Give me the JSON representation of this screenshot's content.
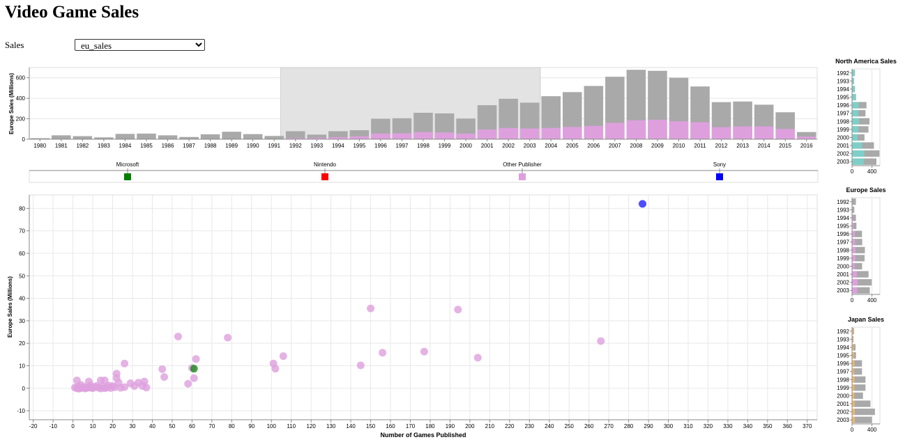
{
  "page": {
    "title": "Video Game Sales",
    "sales_label": "Sales",
    "select": {
      "value": "eu_sales",
      "options": [
        "eu_sales"
      ]
    }
  },
  "colors": {
    "total_bar": "#a9a9a9",
    "selected_bar": "#dda0dd",
    "brush": "#e3e3e3",
    "na": "#7fcfc8",
    "eu": "#dda0dd",
    "jp": "#f0b86a",
    "Microsoft": "#008000",
    "Nintendo": "#ff0000",
    "Other Publisher": "#dda0dd",
    "Sony": "#0000ff"
  },
  "chart_data": [
    {
      "id": "year-bars",
      "type": "bar",
      "ylabel": "Europe Sales (Millions)",
      "ylim": [
        0,
        700
      ],
      "yticks": [
        0,
        200,
        400,
        600
      ],
      "brush_years": [
        1992,
        2003
      ],
      "categories": [
        "1980",
        "1981",
        "1982",
        "1983",
        "1984",
        "1985",
        "1986",
        "1987",
        "1988",
        "1989",
        "1990",
        "1991",
        "1992",
        "1993",
        "1994",
        "1995",
        "1996",
        "1997",
        "1998",
        "1999",
        "2000",
        "2001",
        "2002",
        "2003",
        "2004",
        "2005",
        "2006",
        "2007",
        "2008",
        "2009",
        "2010",
        "2011",
        "2012",
        "2013",
        "2014",
        "2015",
        "2016"
      ],
      "series": [
        {
          "values": [
            10,
            38,
            30,
            18,
            52,
            55,
            38,
            22,
            48,
            73,
            50,
            32,
            78,
            45,
            78,
            88,
            200,
            205,
            258,
            252,
            202,
            332,
            395,
            357,
            420,
            460,
            520,
            610,
            678,
            668,
            600,
            515,
            362,
            368,
            337,
            263,
            70
          ]
        },
        {
          "values": [
            0,
            0,
            0,
            0,
            0,
            0,
            0,
            0,
            0,
            0,
            0,
            0,
            10,
            12,
            20,
            28,
            55,
            58,
            70,
            66,
            55,
            95,
            110,
            105,
            110,
            120,
            130,
            160,
            185,
            190,
            175,
            165,
            118,
            125,
            125,
            100,
            25
          ]
        }
      ]
    },
    {
      "id": "publisher-legend",
      "type": "legend",
      "items": [
        "Microsoft",
        "Nintendo",
        "Other Publisher",
        "Sony"
      ]
    },
    {
      "id": "publisher-scatter",
      "type": "scatter",
      "xlabel": "Number of Games Published",
      "ylabel": "Europe Sales (Millions)",
      "xlim": [
        -22,
        375
      ],
      "ylim": [
        -14,
        86
      ],
      "xticks": [
        -20,
        -10,
        0,
        10,
        20,
        30,
        40,
        50,
        60,
        70,
        80,
        90,
        100,
        110,
        120,
        130,
        140,
        150,
        160,
        170,
        180,
        190,
        200,
        210,
        220,
        230,
        240,
        250,
        260,
        270,
        280,
        290,
        300,
        310,
        320,
        330,
        340,
        350,
        360,
        370
      ],
      "yticks": [
        -10,
        0,
        10,
        20,
        30,
        40,
        50,
        60,
        70,
        80
      ],
      "points": [
        {
          "x": 287,
          "y": 82,
          "publisher": "Sony"
        },
        {
          "x": 61,
          "y": 8.7,
          "publisher": "Microsoft"
        },
        {
          "x": 150,
          "y": 35.5,
          "publisher": "Other Publisher"
        },
        {
          "x": 194,
          "y": 35,
          "publisher": "Other Publisher"
        },
        {
          "x": 53,
          "y": 23,
          "publisher": "Other Publisher"
        },
        {
          "x": 78,
          "y": 22.5,
          "publisher": "Other Publisher"
        },
        {
          "x": 266,
          "y": 21,
          "publisher": "Other Publisher"
        },
        {
          "x": 156,
          "y": 15.8,
          "publisher": "Other Publisher"
        },
        {
          "x": 177,
          "y": 16.3,
          "publisher": "Other Publisher"
        },
        {
          "x": 106,
          "y": 14.3,
          "publisher": "Other Publisher"
        },
        {
          "x": 204,
          "y": 13.6,
          "publisher": "Other Publisher"
        },
        {
          "x": 62,
          "y": 13,
          "publisher": "Other Publisher"
        },
        {
          "x": 26,
          "y": 11,
          "publisher": "Other Publisher"
        },
        {
          "x": 101,
          "y": 11,
          "publisher": "Other Publisher"
        },
        {
          "x": 145,
          "y": 10.2,
          "publisher": "Other Publisher"
        },
        {
          "x": 102,
          "y": 8.7,
          "publisher": "Other Publisher"
        },
        {
          "x": 45,
          "y": 8.5,
          "publisher": "Other Publisher"
        },
        {
          "x": 60,
          "y": 9,
          "publisher": "Other Publisher"
        },
        {
          "x": 22,
          "y": 6.5,
          "publisher": "Other Publisher"
        },
        {
          "x": 46,
          "y": 5,
          "publisher": "Other Publisher"
        },
        {
          "x": 61,
          "y": 4.5,
          "publisher": "Other Publisher"
        },
        {
          "x": 22,
          "y": 4.5,
          "publisher": "Other Publisher"
        },
        {
          "x": 2,
          "y": 3.5,
          "publisher": "Other Publisher"
        },
        {
          "x": 8,
          "y": 3,
          "publisher": "Other Publisher"
        },
        {
          "x": 14,
          "y": 3.5,
          "publisher": "Other Publisher"
        },
        {
          "x": 16,
          "y": 3.5,
          "publisher": "Other Publisher"
        },
        {
          "x": 23,
          "y": 2.5,
          "publisher": "Other Publisher"
        },
        {
          "x": 29,
          "y": 2.2,
          "publisher": "Other Publisher"
        },
        {
          "x": 33,
          "y": 2.5,
          "publisher": "Other Publisher"
        },
        {
          "x": 36,
          "y": 3,
          "publisher": "Other Publisher"
        },
        {
          "x": 58,
          "y": 2,
          "publisher": "Other Publisher"
        },
        {
          "x": 4,
          "y": 1.5,
          "publisher": "Other Publisher"
        },
        {
          "x": 9,
          "y": 1.2,
          "publisher": "Other Publisher"
        },
        {
          "x": 12,
          "y": 1,
          "publisher": "Other Publisher"
        },
        {
          "x": 18,
          "y": 1.2,
          "publisher": "Other Publisher"
        },
        {
          "x": 20,
          "y": 1,
          "publisher": "Other Publisher"
        },
        {
          "x": 26,
          "y": 0.5,
          "publisher": "Other Publisher"
        },
        {
          "x": 31,
          "y": 1,
          "publisher": "Other Publisher"
        },
        {
          "x": 37,
          "y": 0.3,
          "publisher": "Other Publisher"
        },
        {
          "x": 1,
          "y": 0.3,
          "publisher": "Other Publisher"
        },
        {
          "x": 2,
          "y": 0,
          "publisher": "Other Publisher"
        },
        {
          "x": 3,
          "y": 0.8,
          "publisher": "Other Publisher"
        },
        {
          "x": 5,
          "y": 0.2,
          "publisher": "Other Publisher"
        },
        {
          "x": 6,
          "y": 0.6,
          "publisher": "Other Publisher"
        },
        {
          "x": 7,
          "y": 0.1,
          "publisher": "Other Publisher"
        },
        {
          "x": 8,
          "y": 0.4,
          "publisher": "Other Publisher"
        },
        {
          "x": 10,
          "y": 0,
          "publisher": "Other Publisher"
        },
        {
          "x": 11,
          "y": 0.5,
          "publisher": "Other Publisher"
        },
        {
          "x": 13,
          "y": 0.2,
          "publisher": "Other Publisher"
        },
        {
          "x": 15,
          "y": 0.7,
          "publisher": "Other Publisher"
        },
        {
          "x": 16,
          "y": 0,
          "publisher": "Other Publisher"
        },
        {
          "x": 17,
          "y": 0.3,
          "publisher": "Other Publisher"
        },
        {
          "x": 19,
          "y": 0.1,
          "publisher": "Other Publisher"
        },
        {
          "x": 21,
          "y": 0.4,
          "publisher": "Other Publisher"
        },
        {
          "x": 24,
          "y": 0.2,
          "publisher": "Other Publisher"
        },
        {
          "x": 3,
          "y": -0.2,
          "publisher": "Other Publisher"
        },
        {
          "x": 4,
          "y": 0.1,
          "publisher": "Other Publisher"
        },
        {
          "x": 6,
          "y": -0.1,
          "publisher": "Other Publisher"
        },
        {
          "x": 9,
          "y": 0.2,
          "publisher": "Other Publisher"
        },
        {
          "x": 14,
          "y": -0.1,
          "publisher": "Other Publisher"
        },
        {
          "x": 35,
          "y": 1,
          "publisher": "Other Publisher"
        }
      ]
    },
    {
      "id": "na-sales",
      "type": "bar",
      "title": "North America Sales",
      "categories": [
        "1992",
        "1993",
        "1994",
        "1995",
        "1996",
        "1997",
        "1998",
        "1999",
        "2000",
        "2001",
        "2002",
        "2003"
      ],
      "xlim": [
        0,
        560
      ],
      "xticks": [
        0,
        400
      ],
      "series": [
        {
          "values": [
            60,
            40,
            60,
            80,
            290,
            270,
            350,
            330,
            250,
            440,
            550,
            490
          ]
        },
        {
          "values": [
            55,
            35,
            55,
            70,
            135,
            125,
            140,
            125,
            110,
            200,
            245,
            235
          ]
        }
      ]
    },
    {
      "id": "eu-sales",
      "type": "bar",
      "title": "Europe Sales",
      "categories": [
        "1992",
        "1993",
        "1994",
        "1995",
        "1996",
        "1997",
        "1998",
        "1999",
        "2000",
        "2001",
        "2002",
        "2003"
      ],
      "xlim": [
        0,
        560
      ],
      "xticks": [
        0,
        400
      ],
      "series": [
        {
          "values": [
            78,
            45,
            78,
            88,
            200,
            205,
            258,
            252,
            202,
            332,
            395,
            357
          ]
        },
        {
          "values": [
            10,
            12,
            20,
            28,
            55,
            58,
            70,
            66,
            55,
            95,
            110,
            105
          ]
        }
      ]
    },
    {
      "id": "jp-sales",
      "type": "bar",
      "title": "Japan Sales",
      "categories": [
        "1992",
        "1993",
        "1994",
        "1995",
        "1996",
        "1997",
        "1998",
        "1999",
        "2000",
        "2001",
        "2002",
        "2003"
      ],
      "xlim": [
        0,
        560
      ],
      "xticks": [
        0,
        400
      ],
      "series": [
        {
          "values": [
            40,
            30,
            70,
            80,
            200,
            200,
            270,
            270,
            220,
            370,
            460,
            400
          ]
        },
        {
          "values": [
            25,
            20,
            30,
            35,
            45,
            40,
            50,
            45,
            45,
            50,
            55,
            55
          ]
        }
      ]
    }
  ]
}
